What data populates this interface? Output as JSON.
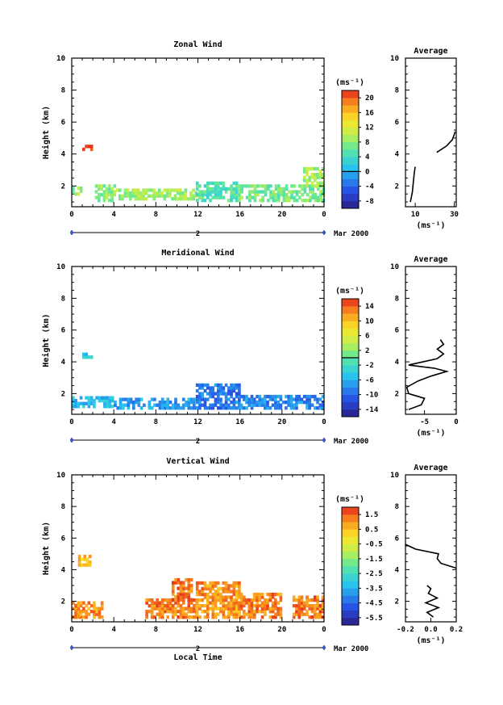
{
  "chart_data": [
    {
      "type": "heatmap",
      "title": "Zonal Wind",
      "ylabel": "Height (km)",
      "xlabel": "",
      "unit": "(ms⁻¹)",
      "x_ticks": [
        "0",
        "4",
        "8",
        "12",
        "16",
        "20",
        "0"
      ],
      "y_ticks": [
        "2",
        "4",
        "6",
        "8",
        "10"
      ],
      "xlim": [
        0,
        24
      ],
      "ylim": [
        0.7,
        10
      ],
      "date_label": "Mar 2000",
      "day_label": "2",
      "colorbar_ticks": [
        "20",
        "16",
        "12",
        "8",
        "4",
        "0",
        "-4",
        "-8"
      ],
      "colorbar_range": [
        -10,
        22
      ],
      "colorbar_zero_line": 0,
      "blobs": [
        {
          "x": [
            1.0,
            2.0
          ],
          "y": [
            4.2,
            4.5
          ],
          "v": 21
        },
        {
          "x": [
            0.0,
            0.8
          ],
          "y": [
            1.4,
            1.8
          ],
          "v": 8
        },
        {
          "x": [
            2.2,
            4.2
          ],
          "y": [
            1.0,
            1.9
          ],
          "v": 8
        },
        {
          "x": [
            4.2,
            11.8
          ],
          "y": [
            1.1,
            1.8
          ],
          "v": 9
        },
        {
          "x": [
            11.8,
            15.8
          ],
          "y": [
            1.0,
            2.1
          ],
          "v": 5
        },
        {
          "x": [
            15.8,
            24.0
          ],
          "y": [
            1.0,
            1.9
          ],
          "v": 7
        },
        {
          "x": [
            22.0,
            24.0
          ],
          "y": [
            1.9,
            3.0
          ],
          "v": 9
        }
      ],
      "average": {
        "title": "Average",
        "xlabel": "(ms⁻¹)",
        "x_ticks": [
          "10",
          "30"
        ],
        "xlim": [
          5,
          31
        ],
        "profile": [
          {
            "x": 7.5,
            "y": 1.0
          },
          {
            "x": 8.5,
            "y": 1.6
          },
          {
            "x": 9.0,
            "y": 2.2
          },
          {
            "x": 9.5,
            "y": 2.8
          },
          {
            "x": 10.0,
            "y": 3.2
          },
          {
            "x": 21.0,
            "y": 4.1
          },
          {
            "x": 26.0,
            "y": 4.5
          },
          {
            "x": 29.0,
            "y": 4.9
          },
          {
            "x": 30.5,
            "y": 5.4
          }
        ],
        "profile_break_after": 4
      }
    },
    {
      "type": "heatmap",
      "title": "Meridional Wind",
      "ylabel": "Height (km)",
      "xlabel": "",
      "unit": "(ms⁻¹)",
      "x_ticks": [
        "0",
        "4",
        "8",
        "12",
        "16",
        "20",
        "0"
      ],
      "y_ticks": [
        "2",
        "4",
        "6",
        "8",
        "10"
      ],
      "xlim": [
        0,
        24
      ],
      "ylim": [
        0.7,
        10
      ],
      "date_label": "Mar 2000",
      "day_label": "2",
      "colorbar_ticks": [
        "14",
        "10",
        "6",
        "2",
        "-2",
        "-6",
        "-10",
        "-14"
      ],
      "colorbar_range": [
        -16,
        16
      ],
      "colorbar_zero_line": 0,
      "blobs": [
        {
          "x": [
            1.0,
            2.0
          ],
          "y": [
            4.2,
            4.5
          ],
          "v": -4
        },
        {
          "x": [
            0.0,
            4.0
          ],
          "y": [
            1.1,
            1.8
          ],
          "v": -5
        },
        {
          "x": [
            4.0,
            11.8
          ],
          "y": [
            1.0,
            1.7
          ],
          "v": -7
        },
        {
          "x": [
            11.8,
            16.0
          ],
          "y": [
            1.0,
            2.6
          ],
          "v": -9
        },
        {
          "x": [
            16.0,
            24.0
          ],
          "y": [
            1.0,
            1.8
          ],
          "v": -8
        }
      ],
      "average": {
        "title": "Average",
        "xlabel": "(ms⁻¹)",
        "x_ticks": [
          "-5",
          "0"
        ],
        "xlim": [
          -8,
          0
        ],
        "profile": [
          {
            "x": -7.5,
            "y": 1.0
          },
          {
            "x": -5.5,
            "y": 1.3
          },
          {
            "x": -5.0,
            "y": 1.7
          },
          {
            "x": -7.5,
            "y": 2.0
          },
          {
            "x": -7.8,
            "y": 2.4
          },
          {
            "x": -6.0,
            "y": 2.8
          },
          {
            "x": -4.0,
            "y": 3.1
          },
          {
            "x": -1.5,
            "y": 3.4
          },
          {
            "x": -3.5,
            "y": 3.6
          },
          {
            "x": -7.5,
            "y": 3.8
          },
          {
            "x": -3.0,
            "y": 4.2
          },
          {
            "x": -2.0,
            "y": 4.5
          },
          {
            "x": -3.0,
            "y": 4.8
          },
          {
            "x": -2.0,
            "y": 5.1
          },
          {
            "x": -2.5,
            "y": 5.4
          }
        ]
      }
    },
    {
      "type": "heatmap",
      "title": "Vertical Wind",
      "ylabel": "Height (km)",
      "xlabel": "Local Time",
      "unit": "(ms⁻¹)",
      "x_ticks": [
        "0",
        "4",
        "8",
        "12",
        "16",
        "20",
        "0"
      ],
      "y_ticks": [
        "2",
        "4",
        "6",
        "8",
        "10"
      ],
      "xlim": [
        0,
        24
      ],
      "ylim": [
        0.7,
        10
      ],
      "date_label": "Mar 2000",
      "day_label": "2",
      "colorbar_ticks": [
        "1.5",
        "0.5",
        "-0.5",
        "-1.5",
        "-2.5",
        "-3.5",
        "-4.5",
        "-5.5"
      ],
      "colorbar_range": [
        -6,
        2
      ],
      "blobs": [
        {
          "x": [
            0.6,
            1.8
          ],
          "y": [
            4.2,
            4.8
          ],
          "v": 0.6
        },
        {
          "x": [
            0.0,
            2.8
          ],
          "y": [
            0.9,
            1.8
          ],
          "v": 1.0
        },
        {
          "x": [
            7.0,
            11.8
          ],
          "y": [
            0.9,
            2.0
          ],
          "v": 1.2
        },
        {
          "x": [
            9.5,
            11.5
          ],
          "y": [
            2.0,
            3.3
          ],
          "v": 1.3
        },
        {
          "x": [
            11.8,
            16.0
          ],
          "y": [
            0.9,
            3.2
          ],
          "v": 1.0
        },
        {
          "x": [
            16.0,
            20.0
          ],
          "y": [
            0.9,
            2.4
          ],
          "v": 1.2
        },
        {
          "x": [
            21.0,
            24.0
          ],
          "y": [
            0.9,
            2.3
          ],
          "v": 1.3
        }
      ],
      "average": {
        "title": "Average",
        "xlabel": "(ms⁻¹)",
        "x_ticks": [
          "-0.2",
          "0.0",
          "0.2"
        ],
        "xlim": [
          -0.2,
          0.2
        ],
        "profile": [
          {
            "x": 0.02,
            "y": 1.0
          },
          {
            "x": -0.03,
            "y": 1.3
          },
          {
            "x": 0.06,
            "y": 1.6
          },
          {
            "x": -0.04,
            "y": 1.9
          },
          {
            "x": 0.05,
            "y": 2.2
          },
          {
            "x": -0.02,
            "y": 2.5
          },
          {
            "x": 0.0,
            "y": 2.8
          },
          {
            "x": -0.03,
            "y": 3.0
          },
          {
            "x": 0.2,
            "y": 4.1
          },
          {
            "x": 0.08,
            "y": 4.4
          },
          {
            "x": 0.05,
            "y": 4.7
          },
          {
            "x": 0.06,
            "y": 5.0
          },
          {
            "x": -0.12,
            "y": 5.3
          },
          {
            "x": -0.2,
            "y": 5.6
          }
        ],
        "profile_break_after": 7
      }
    }
  ]
}
